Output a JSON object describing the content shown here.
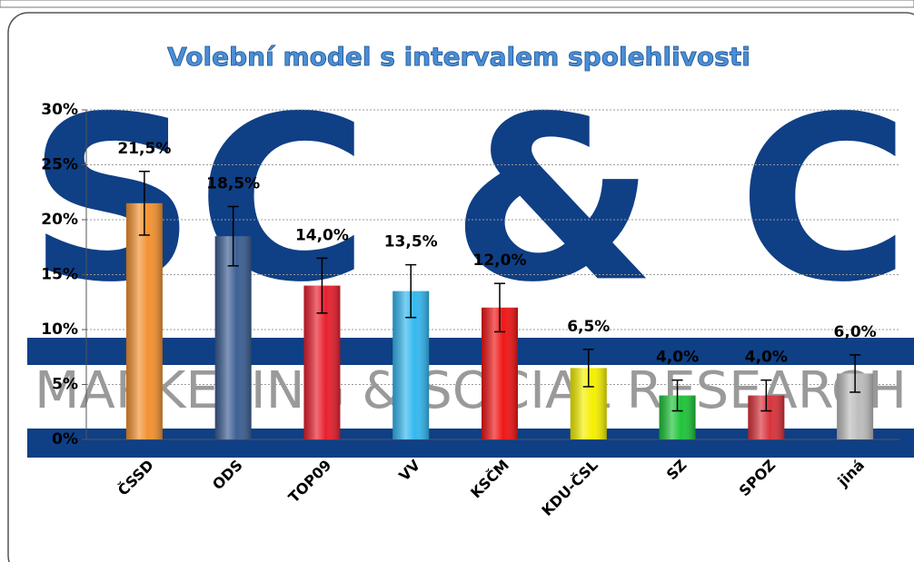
{
  "chart_data": {
    "type": "bar",
    "title": "Volební model s intervalem spolehlivosti",
    "watermark": "SC & C",
    "watermark_subtitle": "MARKETING & SOCIAL RESEARCH",
    "categories": [
      "ČSSD",
      "ODS",
      "TOP09",
      "VV",
      "KSČM",
      "KDU-ČSL",
      "SZ",
      "SPOZ",
      "jiná"
    ],
    "values": [
      21.5,
      18.5,
      14.0,
      13.5,
      12.0,
      6.5,
      4.0,
      4.0,
      6.0
    ],
    "value_labels": [
      "21,5%",
      "18,5%",
      "14,0%",
      "13,5%",
      "12,0%",
      "6,5%",
      "4,0%",
      "4,0%",
      "6,0%"
    ],
    "errors": [
      2.9,
      2.7,
      2.5,
      2.4,
      2.2,
      1.7,
      1.4,
      1.4,
      1.7
    ],
    "colors": [
      "#f39232",
      "#3d5f93",
      "#e8202e",
      "#35b8ef",
      "#f01616",
      "#f5f000",
      "#1fc43a",
      "#d9333c",
      "#bdbdbd"
    ],
    "ylim": [
      0,
      30
    ],
    "yticks": [
      {
        "value": 0,
        "label": "0%"
      },
      {
        "value": 5,
        "label": "5%"
      },
      {
        "value": 10,
        "label": "10%"
      },
      {
        "value": 15,
        "label": "15%"
      },
      {
        "value": 20,
        "label": "20%"
      },
      {
        "value": 25,
        "label": "25%"
      },
      {
        "value": 30,
        "label": "30%"
      }
    ],
    "grid": true
  }
}
